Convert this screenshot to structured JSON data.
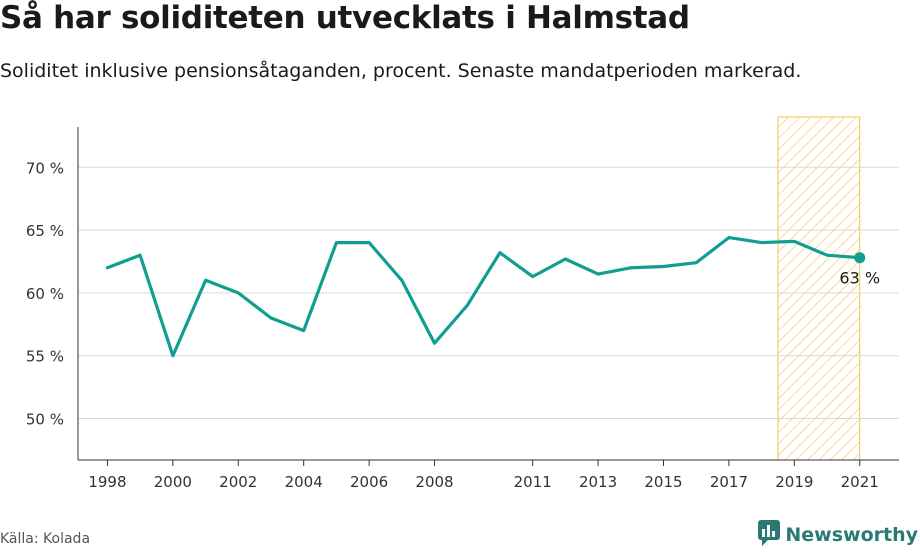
{
  "header": {
    "title": "Så har soliditeten utvecklats i Halmstad",
    "subtitle": "Soliditet inklusive pensionsåtaganden, procent. Senaste mandatperioden markerad."
  },
  "footer": {
    "source": "Källa: Kolada",
    "brand": "Newsworthy"
  },
  "colors": {
    "line": "#0f9e90",
    "highlight": "#f6c04f",
    "grid": "#d9d9d9",
    "brand": "#2a7a74"
  },
  "icons": {
    "brand_logo": "newsworthy-logo-icon"
  },
  "chart_data": {
    "type": "line",
    "title": "Så har soliditeten utvecklats i Halmstad",
    "subtitle": "Soliditet inklusive pensionsåtaganden, procent. Senaste mandatperioden markerad.",
    "x": [
      1998,
      1999,
      2000,
      2001,
      2002,
      2003,
      2004,
      2005,
      2006,
      2007,
      2008,
      2009,
      2010,
      2011,
      2012,
      2013,
      2014,
      2015,
      2016,
      2017,
      2018,
      2019,
      2020,
      2021
    ],
    "series": [
      {
        "values": [
          62,
          63,
          55,
          61,
          60,
          58,
          57,
          64,
          64,
          61,
          56,
          59,
          63.2,
          61.3,
          62.7,
          61.5,
          62,
          62.1,
          62.4,
          64.4,
          64,
          64.1,
          63,
          62.8
        ]
      }
    ],
    "xticks": [
      "1998",
      "2000",
      "2002",
      "2004",
      "2006",
      "2008",
      "2011",
      "2013",
      "2015",
      "2017",
      "2019",
      "2021"
    ],
    "yticks": [
      "50 %",
      "55 %",
      "60 %",
      "65 %",
      "70 %"
    ],
    "ytick_values": [
      50,
      55,
      60,
      65,
      70
    ],
    "ylim": [
      46.7,
      74
    ],
    "xlim": [
      1997.1,
      2022.2
    ],
    "highlight_range": [
      2018.5,
      2021
    ],
    "last_label": "63 %",
    "grid": true,
    "xlabel": "",
    "ylabel": ""
  }
}
